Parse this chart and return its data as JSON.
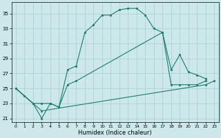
{
  "xlabel": "Humidex (Indice chaleur)",
  "background_color": "#cce8ea",
  "grid_color": "#aacdd0",
  "line_color": "#1a7a6e",
  "xlim": [
    -0.5,
    23.5
  ],
  "ylim": [
    20.5,
    36.5
  ],
  "yticks": [
    21,
    23,
    25,
    27,
    29,
    31,
    33,
    35
  ],
  "xticks": [
    0,
    1,
    2,
    3,
    4,
    5,
    6,
    7,
    8,
    9,
    10,
    11,
    12,
    13,
    14,
    15,
    16,
    17,
    18,
    19,
    20,
    21,
    22,
    23
  ],
  "curve1": [
    [
      0,
      25
    ],
    [
      1,
      24
    ],
    [
      2,
      23
    ],
    [
      3,
      21
    ],
    [
      4,
      23
    ],
    [
      5,
      22.5
    ],
    [
      6,
      27.5
    ],
    [
      7,
      28
    ],
    [
      8,
      32.5
    ],
    [
      9,
      33.5
    ],
    [
      10,
      34.8
    ],
    [
      11,
      34.8
    ],
    [
      12,
      35.5
    ],
    [
      13,
      35.7
    ],
    [
      14,
      35.7
    ],
    [
      15,
      34.8
    ],
    [
      16,
      33
    ],
    [
      17,
      32.5
    ],
    [
      18,
      27.5
    ],
    [
      19,
      29.5
    ],
    [
      20,
      27.2
    ],
    [
      21,
      26.8
    ],
    [
      22,
      26.3
    ]
  ],
  "curve2": [
    [
      0,
      25
    ],
    [
      2,
      23
    ],
    [
      3,
      23
    ],
    [
      4,
      23
    ],
    [
      5,
      22.5
    ],
    [
      6,
      25.5
    ],
    [
      7,
      26
    ],
    [
      17,
      32.5
    ],
    [
      18,
      25.5
    ],
    [
      19,
      25.5
    ],
    [
      20,
      25.5
    ],
    [
      21,
      25.5
    ],
    [
      22,
      26
    ]
  ],
  "curve3": [
    [
      0,
      25
    ],
    [
      3,
      22
    ],
    [
      22,
      25.5
    ],
    [
      23,
      26
    ]
  ]
}
